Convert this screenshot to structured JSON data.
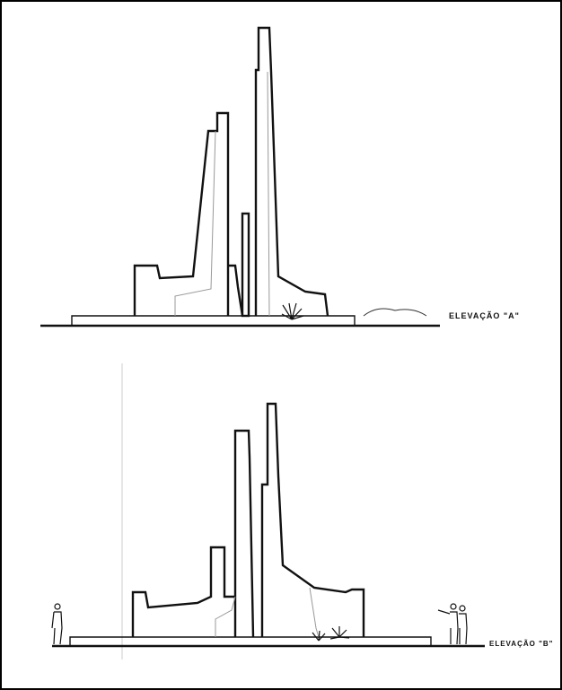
{
  "labels": {
    "elevation_a": "ELEVAÇÃO \"A\"",
    "elevation_b": "ELEVAÇÃO \"B\""
  }
}
